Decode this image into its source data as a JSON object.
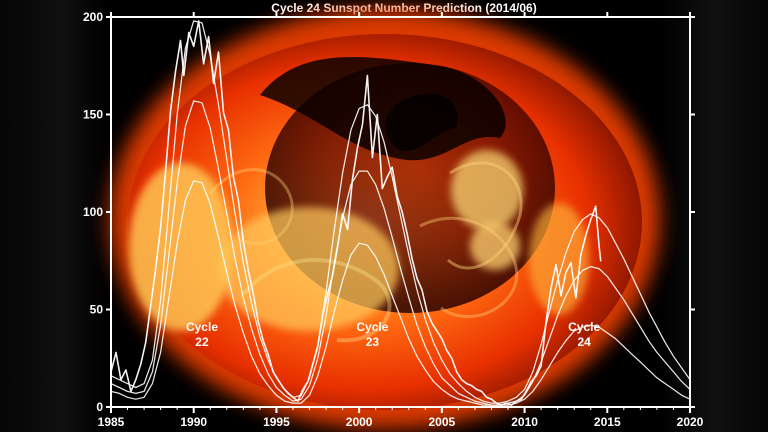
{
  "chart_data": {
    "type": "line",
    "title": "Cycle 24 Sunspot Number Prediction (2014/06)",
    "xlim": [
      1985,
      2020
    ],
    "ylim": [
      0,
      200
    ],
    "x_ticks": [
      "1985",
      "1990",
      "1995",
      "2000",
      "2005",
      "2010",
      "2015",
      "2020"
    ],
    "y_ticks": [
      "0",
      "50",
      "100",
      "150",
      "200"
    ],
    "annotations": [
      {
        "line1": "Cycle",
        "line2": "22",
        "x": 1990.5,
        "y": 39
      },
      {
        "line1": "Cycle",
        "line2": "23",
        "x": 2000.8,
        "y": 39
      },
      {
        "line1": "Cycle",
        "line2": "24",
        "x": 2013.6,
        "y": 39
      }
    ],
    "series": [
      {
        "values": [
          [
            1985.0,
            18
          ],
          [
            1985.3,
            28
          ],
          [
            1985.6,
            14
          ],
          [
            1985.9,
            19
          ],
          [
            1986.2,
            8
          ],
          [
            1986.5,
            14
          ],
          [
            1986.8,
            22
          ],
          [
            1987.1,
            33
          ],
          [
            1987.4,
            52
          ],
          [
            1987.7,
            71
          ],
          [
            1988.0,
            92
          ],
          [
            1988.3,
            121
          ],
          [
            1988.6,
            152
          ],
          [
            1988.9,
            172
          ],
          [
            1989.2,
            188
          ],
          [
            1989.4,
            170
          ],
          [
            1989.7,
            192
          ],
          [
            1990.0,
            185
          ],
          [
            1990.3,
            198
          ],
          [
            1990.6,
            176
          ],
          [
            1990.9,
            190
          ],
          [
            1991.2,
            166
          ],
          [
            1991.5,
            182
          ],
          [
            1991.8,
            151
          ],
          [
            1992.1,
            142
          ],
          [
            1992.4,
            118
          ],
          [
            1992.7,
            106
          ],
          [
            1993.0,
            85
          ],
          [
            1993.3,
            70
          ],
          [
            1993.6,
            58
          ],
          [
            1993.9,
            44
          ],
          [
            1994.2,
            34
          ],
          [
            1994.5,
            27
          ],
          [
            1994.8,
            18
          ],
          [
            1995.1,
            14
          ],
          [
            1995.4,
            10
          ],
          [
            1995.7,
            7
          ],
          [
            1996.0,
            5
          ],
          [
            1996.3,
            3
          ],
          [
            1996.6,
            9
          ],
          [
            1996.9,
            13
          ],
          [
            1997.2,
            22
          ],
          [
            1997.5,
            31
          ],
          [
            1997.8,
            47
          ],
          [
            1998.1,
            58
          ],
          [
            1998.4,
            68
          ],
          [
            1998.7,
            82
          ],
          [
            1999.0,
            99
          ],
          [
            1999.3,
            91
          ],
          [
            1999.6,
            117
          ],
          [
            1999.9,
            133
          ],
          [
            2000.2,
            145
          ],
          [
            2000.5,
            170
          ],
          [
            2000.8,
            128
          ],
          [
            2001.1,
            150
          ],
          [
            2001.4,
            112
          ],
          [
            2001.7,
            118
          ],
          [
            2002.0,
            123
          ],
          [
            2002.3,
            108
          ],
          [
            2002.6,
            100
          ],
          [
            2002.9,
            89
          ],
          [
            2003.2,
            76
          ],
          [
            2003.5,
            66
          ],
          [
            2003.8,
            60
          ],
          [
            2004.1,
            49
          ],
          [
            2004.4,
            43
          ],
          [
            2004.7,
            39
          ],
          [
            2005.0,
            35
          ],
          [
            2005.3,
            29
          ],
          [
            2005.6,
            25
          ],
          [
            2005.9,
            18
          ],
          [
            2006.2,
            14
          ],
          [
            2006.5,
            12
          ],
          [
            2006.8,
            11
          ],
          [
            2007.1,
            9
          ],
          [
            2007.4,
            8
          ],
          [
            2007.7,
            5
          ],
          [
            2008.0,
            4
          ],
          [
            2008.3,
            2
          ],
          [
            2008.6,
            1
          ],
          [
            2008.9,
            2
          ],
          [
            2009.2,
            1
          ],
          [
            2009.5,
            3
          ],
          [
            2009.8,
            4
          ],
          [
            2010.1,
            8
          ],
          [
            2010.4,
            13
          ],
          [
            2010.7,
            16
          ],
          [
            2011.0,
            21
          ],
          [
            2011.3,
            44
          ],
          [
            2011.6,
            61
          ],
          [
            2011.9,
            73
          ],
          [
            2012.2,
            57
          ],
          [
            2012.5,
            69
          ],
          [
            2012.8,
            74
          ],
          [
            2013.1,
            56
          ],
          [
            2013.4,
            78
          ],
          [
            2013.7,
            88
          ],
          [
            2014.0,
            96
          ],
          [
            2014.3,
            103
          ],
          [
            2014.5,
            83
          ],
          [
            2014.6,
            75
          ]
        ]
      },
      {
        "values": [
          [
            1985.0,
            16
          ],
          [
            1985.5,
            14
          ],
          [
            1986.0,
            12
          ],
          [
            1986.5,
            10
          ],
          [
            1987.0,
            12
          ],
          [
            1987.5,
            24
          ],
          [
            1988.0,
            55
          ],
          [
            1988.5,
            102
          ],
          [
            1989.0,
            150
          ],
          [
            1989.5,
            184
          ],
          [
            1990.0,
            198
          ],
          [
            1990.5,
            197
          ],
          [
            1991.0,
            180
          ],
          [
            1991.5,
            155
          ],
          [
            1992.0,
            127
          ],
          [
            1992.5,
            99
          ],
          [
            1993.0,
            74
          ],
          [
            1993.5,
            53
          ],
          [
            1994.0,
            36
          ],
          [
            1994.5,
            24
          ],
          [
            1995.0,
            15
          ],
          [
            1995.5,
            9
          ],
          [
            1996.0,
            5
          ],
          [
            1996.5,
            6
          ],
          [
            1997.0,
            15
          ],
          [
            1997.5,
            32
          ],
          [
            1998.0,
            59
          ],
          [
            1998.5,
            91
          ],
          [
            1999.0,
            120
          ],
          [
            1999.5,
            142
          ],
          [
            2000.0,
            153
          ],
          [
            2000.5,
            155
          ],
          [
            2001.0,
            149
          ],
          [
            2001.5,
            136
          ],
          [
            2002.0,
            118
          ],
          [
            2002.5,
            98
          ],
          [
            2003.0,
            78
          ],
          [
            2003.5,
            60
          ],
          [
            2004.0,
            45
          ],
          [
            2004.5,
            33
          ],
          [
            2005.0,
            24
          ],
          [
            2005.5,
            17
          ],
          [
            2006.0,
            12
          ],
          [
            2006.5,
            8
          ],
          [
            2007.0,
            5
          ],
          [
            2007.5,
            3
          ],
          [
            2008.0,
            2
          ],
          [
            2008.5,
            2
          ],
          [
            2009.0,
            3
          ],
          [
            2009.5,
            5
          ],
          [
            2010.0,
            9
          ],
          [
            2010.5,
            18
          ],
          [
            2011.0,
            32
          ],
          [
            2011.5,
            49
          ],
          [
            2012.0,
            65
          ],
          [
            2012.5,
            79
          ],
          [
            2013.0,
            90
          ],
          [
            2013.5,
            96
          ],
          [
            2014.0,
            99
          ],
          [
            2014.5,
            97
          ],
          [
            2015.0,
            92
          ],
          [
            2015.5,
            84
          ],
          [
            2016.0,
            76
          ],
          [
            2016.5,
            67
          ],
          [
            2017.0,
            58
          ],
          [
            2017.5,
            49
          ],
          [
            2018.0,
            41
          ],
          [
            2018.5,
            33
          ],
          [
            2019.0,
            26
          ],
          [
            2019.5,
            20
          ],
          [
            2020.0,
            14
          ]
        ]
      },
      {
        "values": [
          [
            1985.0,
            12
          ],
          [
            1985.5,
            10
          ],
          [
            1986.0,
            8
          ],
          [
            1986.5,
            7
          ],
          [
            1987.0,
            8
          ],
          [
            1987.5,
            18
          ],
          [
            1988.0,
            42
          ],
          [
            1988.5,
            78
          ],
          [
            1989.0,
            115
          ],
          [
            1989.5,
            144
          ],
          [
            1990.0,
            157
          ],
          [
            1990.5,
            156
          ],
          [
            1991.0,
            143
          ],
          [
            1991.5,
            122
          ],
          [
            1992.0,
            99
          ],
          [
            1992.5,
            76
          ],
          [
            1993.0,
            56
          ],
          [
            1993.5,
            40
          ],
          [
            1994.0,
            27
          ],
          [
            1994.5,
            17
          ],
          [
            1995.0,
            10
          ],
          [
            1995.5,
            6
          ],
          [
            1996.0,
            3
          ],
          [
            1996.5,
            4
          ],
          [
            1997.0,
            11
          ],
          [
            1997.5,
            25
          ],
          [
            1998.0,
            47
          ],
          [
            1998.5,
            74
          ],
          [
            1999.0,
            97
          ],
          [
            1999.5,
            114
          ],
          [
            2000.0,
            121
          ],
          [
            2000.5,
            121
          ],
          [
            2001.0,
            114
          ],
          [
            2001.5,
            102
          ],
          [
            2002.0,
            87
          ],
          [
            2002.5,
            71
          ],
          [
            2003.0,
            56
          ],
          [
            2003.5,
            42
          ],
          [
            2004.0,
            31
          ],
          [
            2004.5,
            22
          ],
          [
            2005.0,
            15
          ],
          [
            2005.5,
            11
          ],
          [
            2006.0,
            7
          ],
          [
            2006.5,
            5
          ],
          [
            2007.0,
            3
          ],
          [
            2007.5,
            2
          ],
          [
            2008.0,
            1
          ],
          [
            2008.5,
            1
          ],
          [
            2009.0,
            2
          ],
          [
            2009.5,
            3
          ],
          [
            2010.0,
            6
          ],
          [
            2010.5,
            13
          ],
          [
            2011.0,
            23
          ],
          [
            2011.5,
            35
          ],
          [
            2012.0,
            47
          ],
          [
            2012.5,
            57
          ],
          [
            2013.0,
            65
          ],
          [
            2013.5,
            70
          ],
          [
            2014.0,
            72
          ],
          [
            2014.5,
            71
          ],
          [
            2015.0,
            67
          ],
          [
            2015.5,
            61
          ],
          [
            2016.0,
            55
          ],
          [
            2016.5,
            48
          ],
          [
            2017.0,
            41
          ],
          [
            2017.5,
            34
          ],
          [
            2018.0,
            28
          ],
          [
            2018.5,
            23
          ],
          [
            2019.0,
            18
          ],
          [
            2019.5,
            13
          ],
          [
            2020.0,
            9
          ]
        ]
      },
      {
        "values": [
          [
            1985.0,
            8
          ],
          [
            1985.5,
            7
          ],
          [
            1986.0,
            5
          ],
          [
            1986.5,
            4
          ],
          [
            1987.0,
            5
          ],
          [
            1987.5,
            12
          ],
          [
            1988.0,
            28
          ],
          [
            1988.5,
            56
          ],
          [
            1989.0,
            84
          ],
          [
            1989.5,
            106
          ],
          [
            1990.0,
            116
          ],
          [
            1990.5,
            115
          ],
          [
            1991.0,
            104
          ],
          [
            1991.5,
            87
          ],
          [
            1992.0,
            69
          ],
          [
            1992.5,
            52
          ],
          [
            1993.0,
            38
          ],
          [
            1993.5,
            26
          ],
          [
            1994.0,
            17
          ],
          [
            1994.5,
            11
          ],
          [
            1995.0,
            6
          ],
          [
            1995.5,
            3
          ],
          [
            1996.0,
            2
          ],
          [
            1996.5,
            2
          ],
          [
            1997.0,
            6
          ],
          [
            1997.5,
            16
          ],
          [
            1998.0,
            31
          ],
          [
            1998.5,
            49
          ],
          [
            1999.0,
            65
          ],
          [
            1999.5,
            78
          ],
          [
            2000.0,
            84
          ],
          [
            2000.5,
            83
          ],
          [
            2001.0,
            77
          ],
          [
            2001.5,
            68
          ],
          [
            2002.0,
            57
          ],
          [
            2002.5,
            46
          ],
          [
            2003.0,
            35
          ],
          [
            2003.5,
            26
          ],
          [
            2004.0,
            19
          ],
          [
            2004.5,
            13
          ],
          [
            2005.0,
            9
          ],
          [
            2005.5,
            6
          ],
          [
            2006.0,
            4
          ],
          [
            2006.5,
            3
          ],
          [
            2007.0,
            2
          ],
          [
            2007.5,
            1
          ],
          [
            2008.0,
            1
          ],
          [
            2008.5,
            1
          ],
          [
            2009.0,
            1
          ],
          [
            2009.5,
            2
          ],
          [
            2010.0,
            4
          ],
          [
            2010.5,
            8
          ],
          [
            2011.0,
            14
          ],
          [
            2011.5,
            21
          ],
          [
            2012.0,
            28
          ],
          [
            2012.5,
            34
          ],
          [
            2013.0,
            39
          ],
          [
            2013.5,
            41
          ],
          [
            2014.0,
            42
          ],
          [
            2014.5,
            41
          ],
          [
            2015.0,
            38
          ],
          [
            2015.5,
            35
          ],
          [
            2016.0,
            31
          ],
          [
            2016.5,
            27
          ],
          [
            2017.0,
            23
          ],
          [
            2017.5,
            19
          ],
          [
            2018.0,
            15
          ],
          [
            2018.5,
            12
          ],
          [
            2019.0,
            9
          ],
          [
            2019.5,
            6
          ],
          [
            2020.0,
            4
          ]
        ]
      }
    ],
    "colors": {
      "line": "#ffffff",
      "axis": "#ffffff",
      "background": "#000000",
      "sun_core": "#ff9a26",
      "sun_edge": "#ff3d00",
      "sun_bright": "#fff2b8"
    }
  }
}
